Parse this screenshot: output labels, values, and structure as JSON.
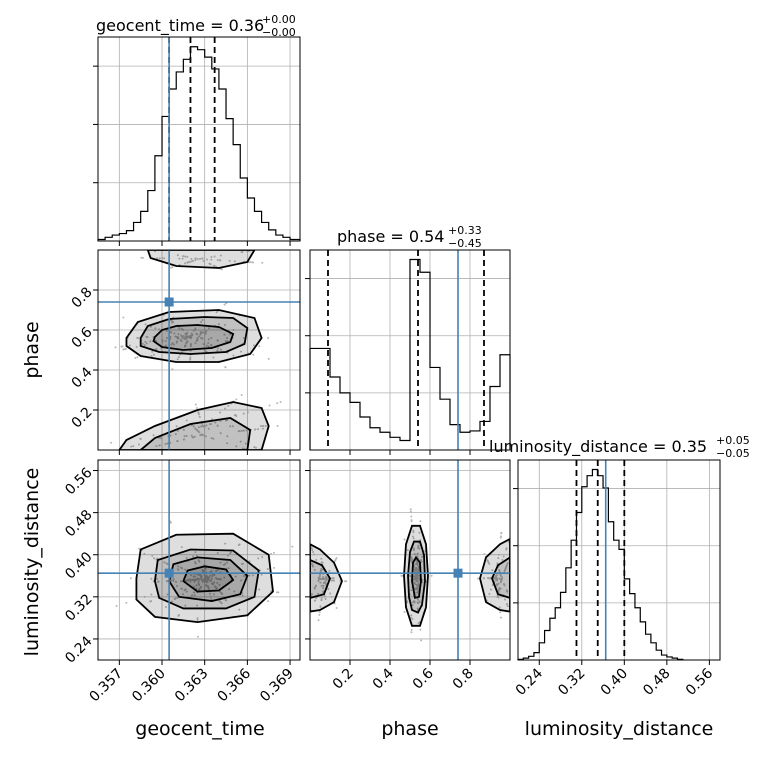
{
  "chart_data": {
    "type": "corner",
    "parameters": [
      {
        "name": "geocent_time",
        "title_main": "geocent_time = 0.36",
        "title_plus": "+0.00",
        "title_minus": "−0.00",
        "range": [
          0.3555,
          0.3697
        ],
        "ticks": [
          0.357,
          0.36,
          0.363,
          0.366,
          0.369
        ],
        "tick_labels": [
          "0.357",
          "0.360",
          "0.363",
          "0.366",
          "0.369"
        ],
        "quantiles": [
          0.3605,
          0.362,
          0.3637
        ],
        "truth": 0.3605,
        "hist_edges": [
          0.3555,
          0.356,
          0.3565,
          0.357,
          0.3575,
          0.358,
          0.3585,
          0.359,
          0.3595,
          0.36,
          0.3605,
          0.361,
          0.3615,
          0.362,
          0.3625,
          0.363,
          0.3635,
          0.364,
          0.3645,
          0.365,
          0.3655,
          0.366,
          0.3665,
          0.367,
          0.3675,
          0.368,
          0.3685,
          0.369,
          0.3697
        ],
        "hist_counts": [
          2,
          5,
          8,
          10,
          14,
          25,
          40,
          68,
          115,
          168,
          205,
          228,
          245,
          262,
          258,
          248,
          232,
          205,
          165,
          130,
          85,
          58,
          40,
          25,
          15,
          8,
          5,
          2
        ]
      },
      {
        "name": "phase",
        "title_main": "phase = 0.54",
        "title_plus": "+0.33",
        "title_minus": "−0.45",
        "range": [
          0.0,
          1.0
        ],
        "ticks": [
          0.2,
          0.4,
          0.6,
          0.8
        ],
        "tick_labels": [
          "0.2",
          "0.4",
          "0.6",
          "0.8"
        ],
        "quantiles": [
          0.09,
          0.54,
          0.87
        ],
        "truth": 0.74,
        "hist_edges": [
          0.0,
          0.05,
          0.1,
          0.15,
          0.2,
          0.25,
          0.3,
          0.35,
          0.4,
          0.45,
          0.5,
          0.55,
          0.6,
          0.65,
          0.7,
          0.75,
          0.8,
          0.85,
          0.9,
          0.95,
          1.0
        ],
        "hist_counts": [
          160,
          160,
          115,
          90,
          75,
          52,
          35,
          28,
          20,
          15,
          300,
          280,
          130,
          80,
          40,
          28,
          30,
          45,
          100,
          150
        ]
      },
      {
        "name": "luminosity_distance",
        "title_main": "luminosity_distance = 0.35",
        "title_plus": "+0.05",
        "title_minus": "−0.05",
        "range": [
          0.2,
          0.58
        ],
        "ticks": [
          0.24,
          0.32,
          0.4,
          0.48,
          0.56
        ],
        "tick_labels": [
          "0.24",
          "0.32",
          "0.40",
          "0.48",
          "0.56"
        ],
        "quantiles": [
          0.31,
          0.35,
          0.4
        ],
        "truth": 0.365,
        "hist_edges": [
          0.2,
          0.21,
          0.22,
          0.23,
          0.24,
          0.25,
          0.26,
          0.27,
          0.28,
          0.29,
          0.3,
          0.31,
          0.32,
          0.33,
          0.34,
          0.35,
          0.36,
          0.37,
          0.38,
          0.39,
          0.4,
          0.41,
          0.42,
          0.43,
          0.44,
          0.45,
          0.46,
          0.47,
          0.48,
          0.49,
          0.5,
          0.51
        ],
        "hist_counts": [
          1,
          3,
          6,
          12,
          28,
          48,
          68,
          85,
          110,
          150,
          195,
          240,
          282,
          300,
          310,
          300,
          280,
          225,
          195,
          180,
          132,
          108,
          85,
          62,
          42,
          28,
          16,
          8,
          5,
          3,
          1
        ]
      }
    ],
    "pairs": [
      {
        "x": "geocent_time",
        "y": "phase",
        "truth": [
          0.3605,
          0.74
        ],
        "contours": [
          {
            "points": [
              [
                0.3595,
                0.565
              ],
              [
                0.36,
                0.6
              ],
              [
                0.361,
                0.62
              ],
              [
                0.3625,
                0.625
              ],
              [
                0.364,
                0.615
              ],
              [
                0.365,
                0.58
              ],
              [
                0.3648,
                0.54
              ],
              [
                0.3635,
                0.51
              ],
              [
                0.3615,
                0.5
              ],
              [
                0.36,
                0.515
              ],
              [
                0.3594,
                0.545
              ]
            ]
          },
          {
            "points": [
              [
                0.3585,
                0.56
              ],
              [
                0.359,
                0.62
              ],
              [
                0.3605,
                0.655
              ],
              [
                0.363,
                0.665
              ],
              [
                0.365,
                0.66
              ],
              [
                0.366,
                0.61
              ],
              [
                0.3658,
                0.53
              ],
              [
                0.3645,
                0.49
              ],
              [
                0.362,
                0.48
              ],
              [
                0.3598,
                0.49
              ],
              [
                0.3585,
                0.52
              ]
            ]
          },
          {
            "points": [
              [
                0.3575,
                0.56
              ],
              [
                0.3583,
                0.64
              ],
              [
                0.3605,
                0.69
              ],
              [
                0.364,
                0.7
              ],
              [
                0.3665,
                0.66
              ],
              [
                0.367,
                0.56
              ],
              [
                0.3662,
                0.48
              ],
              [
                0.364,
                0.44
              ],
              [
                0.361,
                0.44
              ],
              [
                0.3585,
                0.47
              ],
              [
                0.3575,
                0.52
              ]
            ]
          },
          {
            "points": [
              [
                0.359,
                1.0
              ],
              [
                0.3592,
                0.96
              ],
              [
                0.361,
                0.92
              ],
              [
                0.364,
                0.91
              ],
              [
                0.366,
                0.94
              ],
              [
                0.3665,
                1.0
              ]
            ]
          },
          {
            "points": [
              [
                0.357,
                0.0
              ],
              [
                0.3575,
                0.05
              ],
              [
                0.3595,
                0.12
              ],
              [
                0.3625,
                0.2
              ],
              [
                0.365,
                0.24
              ],
              [
                0.367,
                0.21
              ],
              [
                0.3675,
                0.12
              ],
              [
                0.367,
                0.0
              ]
            ]
          },
          {
            "points": [
              [
                0.3585,
                0.0
              ],
              [
                0.3595,
                0.06
              ],
              [
                0.362,
                0.13
              ],
              [
                0.3648,
                0.16
              ],
              [
                0.3662,
                0.1
              ],
              [
                0.366,
                0.0
              ]
            ]
          }
        ]
      },
      {
        "x": "geocent_time",
        "y": "luminosity_distance",
        "truth": [
          0.3605,
          0.365
        ],
        "contours": [
          {
            "points": [
              [
                0.3615,
                0.35
              ],
              [
                0.3618,
                0.37
              ],
              [
                0.363,
                0.378
              ],
              [
                0.3645,
                0.372
              ],
              [
                0.365,
                0.352
              ],
              [
                0.364,
                0.332
              ],
              [
                0.3625,
                0.33
              ]
            ]
          },
          {
            "points": [
              [
                0.3605,
                0.35
              ],
              [
                0.3608,
                0.382
              ],
              [
                0.3625,
                0.395
              ],
              [
                0.3648,
                0.39
              ],
              [
                0.366,
                0.36
              ],
              [
                0.3655,
                0.325
              ],
              [
                0.3635,
                0.312
              ],
              [
                0.3612,
                0.32
              ]
            ]
          },
          {
            "points": [
              [
                0.3595,
                0.35
              ],
              [
                0.3597,
                0.39
              ],
              [
                0.362,
                0.41
              ],
              [
                0.365,
                0.408
              ],
              [
                0.3668,
                0.37
              ],
              [
                0.3665,
                0.32
              ],
              [
                0.3645,
                0.298
              ],
              [
                0.3615,
                0.298
              ],
              [
                0.3598,
                0.318
              ]
            ]
          },
          {
            "points": [
              [
                0.3582,
                0.355
              ],
              [
                0.3585,
                0.41
              ],
              [
                0.361,
                0.438
              ],
              [
                0.365,
                0.44
              ],
              [
                0.3675,
                0.4
              ],
              [
                0.3678,
                0.33
              ],
              [
                0.366,
                0.285
              ],
              [
                0.3625,
                0.272
              ],
              [
                0.3595,
                0.282
              ],
              [
                0.3582,
                0.315
              ]
            ]
          }
        ]
      },
      {
        "x": "phase",
        "y": "luminosity_distance",
        "truth": [
          0.74,
          0.365
        ],
        "contours": [
          {
            "points": [
              [
                0.0,
                0.42
              ],
              [
                0.05,
                0.41
              ],
              [
                0.12,
                0.385
              ],
              [
                0.16,
                0.35
              ],
              [
                0.12,
                0.31
              ],
              [
                0.05,
                0.295
              ],
              [
                0.0,
                0.292
              ]
            ]
          },
          {
            "points": [
              [
                0.0,
                0.39
              ],
              [
                0.06,
                0.38
              ],
              [
                0.1,
                0.355
              ],
              [
                0.07,
                0.325
              ],
              [
                0.0,
                0.318
              ]
            ]
          },
          {
            "points": [
              [
                0.47,
                0.36
              ],
              [
                0.48,
                0.42
              ],
              [
                0.51,
                0.455
              ],
              [
                0.55,
                0.455
              ],
              [
                0.58,
                0.42
              ],
              [
                0.59,
                0.36
              ],
              [
                0.58,
                0.3
              ],
              [
                0.55,
                0.265
              ],
              [
                0.51,
                0.265
              ],
              [
                0.48,
                0.3
              ]
            ]
          },
          {
            "points": [
              [
                0.49,
                0.36
              ],
              [
                0.5,
                0.405
              ],
              [
                0.52,
                0.425
              ],
              [
                0.55,
                0.425
              ],
              [
                0.57,
                0.4
              ],
              [
                0.575,
                0.35
              ],
              [
                0.56,
                0.305
              ],
              [
                0.54,
                0.29
              ],
              [
                0.51,
                0.295
              ],
              [
                0.495,
                0.32
              ]
            ]
          },
          {
            "points": [
              [
                0.51,
                0.35
              ],
              [
                0.515,
                0.385
              ],
              [
                0.53,
                0.395
              ],
              [
                0.55,
                0.385
              ],
              [
                0.555,
                0.35
              ],
              [
                0.545,
                0.32
              ],
              [
                0.525,
                0.318
              ]
            ]
          },
          {
            "points": [
              [
                1.0,
                0.43
              ],
              [
                0.95,
                0.42
              ],
              [
                0.88,
                0.395
              ],
              [
                0.85,
                0.355
              ],
              [
                0.88,
                0.31
              ],
              [
                0.95,
                0.295
              ],
              [
                1.0,
                0.292
              ]
            ]
          },
          {
            "points": [
              [
                1.0,
                0.395
              ],
              [
                0.94,
                0.38
              ],
              [
                0.91,
                0.355
              ],
              [
                0.94,
                0.325
              ],
              [
                1.0,
                0.318
              ]
            ]
          }
        ]
      }
    ]
  }
}
